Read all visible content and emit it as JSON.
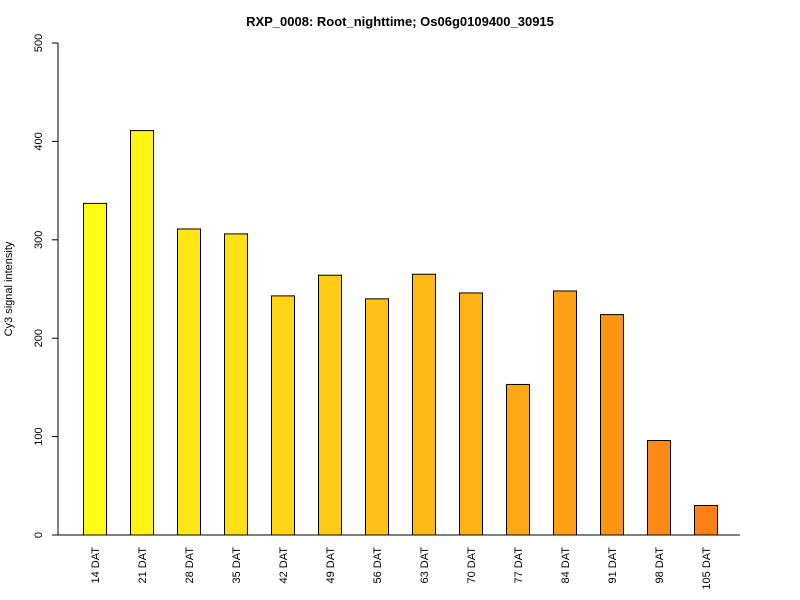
{
  "chart_data": {
    "type": "bar",
    "title": "RXP_0008: Root_nighttime; Os06g0109400_30915",
    "xlabel": "",
    "ylabel": "Cy3 signal intensity",
    "ylim": [
      0,
      500
    ],
    "yticks": [
      0,
      100,
      200,
      300,
      400,
      500
    ],
    "grid": false,
    "categories": [
      "14 DAT",
      "21 DAT",
      "28 DAT",
      "35 DAT",
      "42 DAT",
      "49 DAT",
      "56 DAT",
      "63 DAT",
      "70 DAT",
      "77 DAT",
      "84 DAT",
      "91 DAT",
      "98 DAT",
      "105 DAT"
    ],
    "values": [
      337,
      411,
      311,
      306,
      243,
      264,
      240,
      265,
      246,
      153,
      248,
      224,
      96,
      30
    ],
    "colors": [
      "#FFFF15",
      "#FFF215",
      "#FFE615",
      "#FFDF15",
      "#FFD515",
      "#FFCC15",
      "#FFC215",
      "#FFBB15",
      "#FFB215",
      "#FFA715",
      "#FF9F15",
      "#FF9515",
      "#FF8A15",
      "#FF8015"
    ]
  }
}
